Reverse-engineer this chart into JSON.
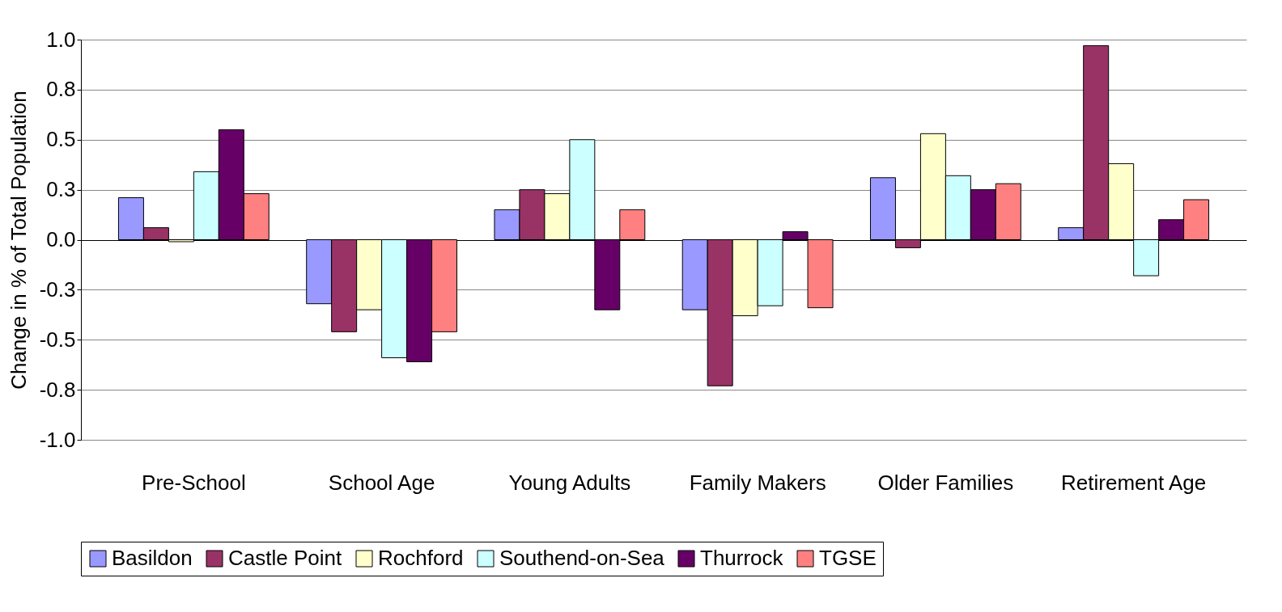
{
  "chart_data": {
    "type": "bar",
    "ylabel": "Change in % of Total Population",
    "categories": [
      "Pre-School",
      "School Age",
      "Young Adults",
      "Family Makers",
      "Older Families",
      "Retirement Age"
    ],
    "series": [
      {
        "name": "Basildon",
        "color": "#9999ff",
        "values": [
          0.21,
          -0.32,
          0.15,
          -0.35,
          0.31,
          0.06
        ]
      },
      {
        "name": "Castle Point",
        "color": "#993366",
        "values": [
          0.06,
          -0.46,
          0.25,
          -0.73,
          -0.04,
          0.97
        ]
      },
      {
        "name": "Rochford",
        "color": "#ffffcc",
        "values": [
          -0.01,
          -0.35,
          0.23,
          -0.38,
          0.53,
          0.38
        ]
      },
      {
        "name": "Southend-on-Sea",
        "color": "#ccffff",
        "values": [
          0.34,
          -0.59,
          0.5,
          -0.33,
          0.32,
          -0.18
        ]
      },
      {
        "name": "Thurrock",
        "color": "#660066",
        "values": [
          0.55,
          -0.61,
          -0.35,
          0.04,
          0.25,
          0.1
        ]
      },
      {
        "name": "TGSE",
        "color": "#ff8080",
        "values": [
          0.23,
          -0.46,
          0.15,
          -0.34,
          0.28,
          0.2
        ]
      }
    ],
    "ylim": [
      -1.0,
      1.0
    ],
    "yticks": [
      "-1.0",
      {
        "value": -0.75,
        "label": "-0.8"
      },
      {
        "value": -0.5,
        "label": "-0.5"
      },
      {
        "value": -0.25,
        "label": "-0.3"
      },
      {
        "value": 0,
        "label": "0.0"
      },
      {
        "value": 0.25,
        "label": "0.3"
      },
      {
        "value": 0.5,
        "label": "0.5"
      },
      {
        "value": 0.75,
        "label": "0.8"
      },
      {
        "value": 1.0,
        "label": "1.0"
      }
    ],
    "grid": "y",
    "legend": "bottom"
  }
}
